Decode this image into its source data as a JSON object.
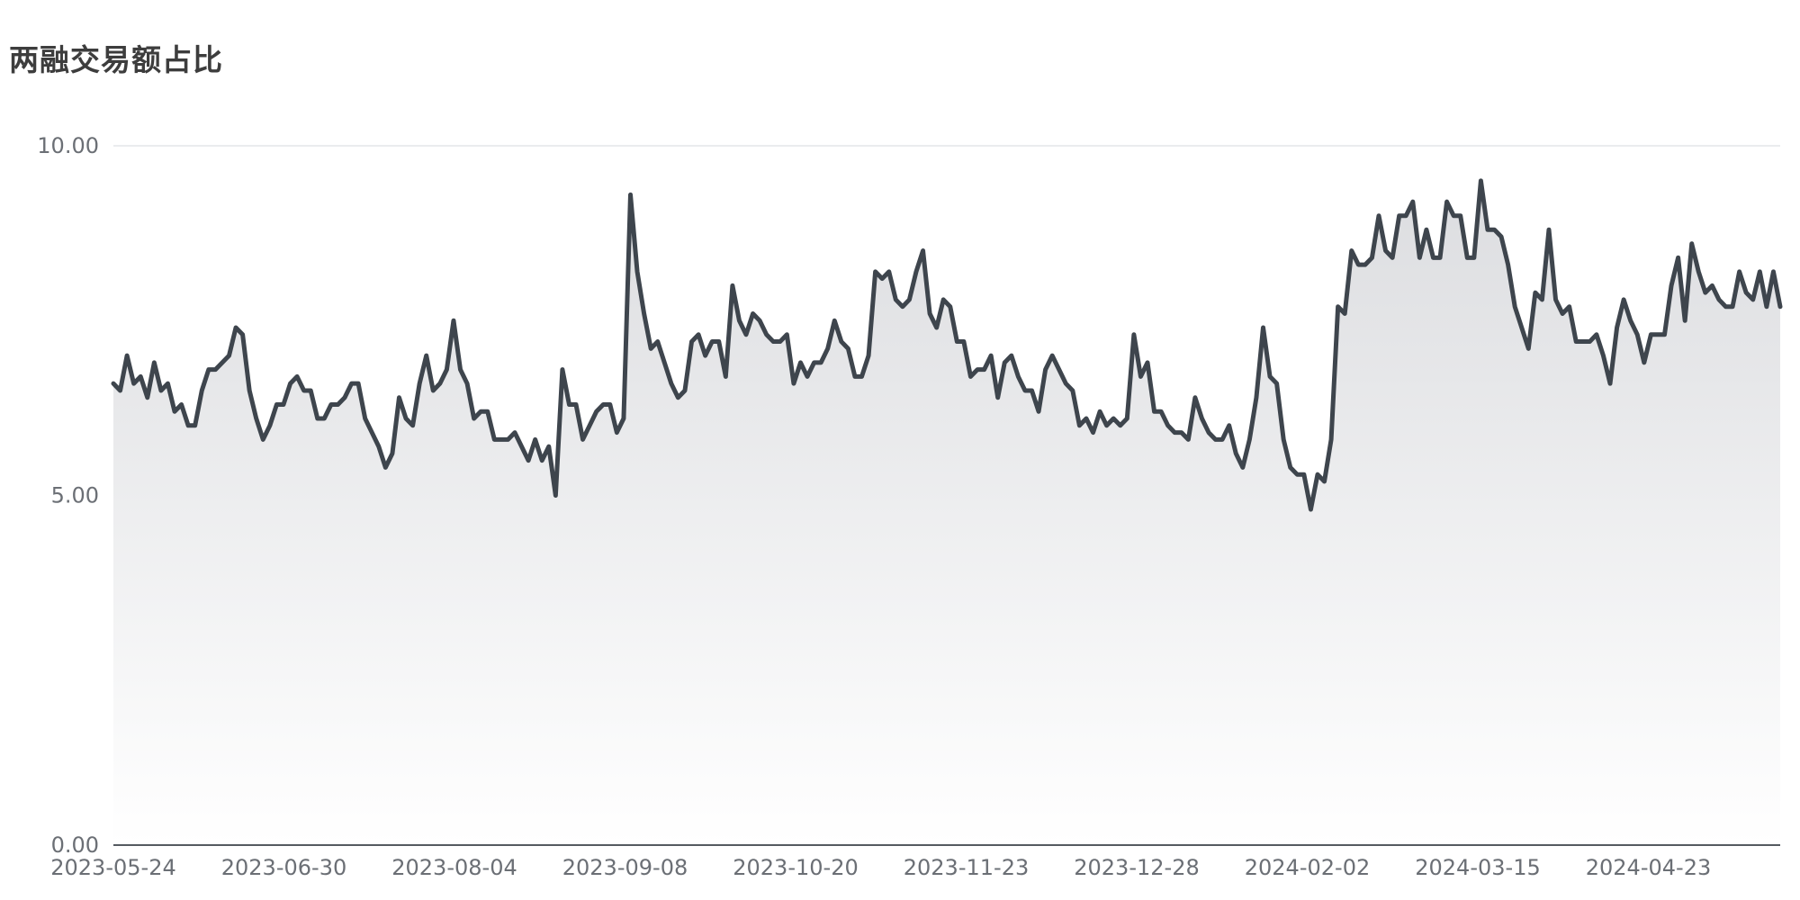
{
  "chart_data": {
    "type": "area",
    "title": "两融交易额占比",
    "xlabel": "",
    "ylabel": "",
    "ylim": [
      0,
      10
    ],
    "yticks": [
      "0.00",
      "5.00",
      "10.00"
    ],
    "x_ticks": [
      "2023-05-24",
      "2023-06-30",
      "2023-08-04",
      "2023-09-08",
      "2023-10-20",
      "2023-11-23",
      "2023-12-28",
      "2024-02-02",
      "2024-03-15",
      "2024-04-23"
    ],
    "grid": "horizontal",
    "legend": "none",
    "colors": {
      "line": "#3e454d",
      "fill_top": "#dcdde0",
      "fill_bottom": "#ffffff",
      "grid": "#e3e5e8",
      "axis": "#555a60"
    },
    "series": [
      {
        "values": [
          6.6,
          6.5,
          7.0,
          6.6,
          6.7,
          6.4,
          6.9,
          6.5,
          6.6,
          6.2,
          6.3,
          6.0,
          6.0,
          6.5,
          6.8,
          6.8,
          6.9,
          7.0,
          7.4,
          7.3,
          6.5,
          6.1,
          5.8,
          6.0,
          6.3,
          6.3,
          6.6,
          6.7,
          6.5,
          6.5,
          6.1,
          6.1,
          6.3,
          6.3,
          6.4,
          6.6,
          6.6,
          6.1,
          5.9,
          5.7,
          5.4,
          5.6,
          6.4,
          6.1,
          6.0,
          6.6,
          7.0,
          6.5,
          6.6,
          6.8,
          7.5,
          6.8,
          6.6,
          6.1,
          6.2,
          6.2,
          5.8,
          5.8,
          5.8,
          5.9,
          5.7,
          5.5,
          5.8,
          5.5,
          5.7,
          5.0,
          6.8,
          6.3,
          6.3,
          5.8,
          6.0,
          6.2,
          6.3,
          6.3,
          5.9,
          6.1,
          9.3,
          8.2,
          7.6,
          7.1,
          7.2,
          6.9,
          6.6,
          6.4,
          6.5,
          7.2,
          7.3,
          7.0,
          7.2,
          7.2,
          6.7,
          8.0,
          7.5,
          7.3,
          7.6,
          7.5,
          7.3,
          7.2,
          7.2,
          7.3,
          6.6,
          6.9,
          6.7,
          6.9,
          6.9,
          7.1,
          7.5,
          7.2,
          7.1,
          6.7,
          6.7,
          7.0,
          8.2,
          8.1,
          8.2,
          7.8,
          7.7,
          7.8,
          8.2,
          8.5,
          7.6,
          7.4,
          7.8,
          7.7,
          7.2,
          7.2,
          6.7,
          6.8,
          6.8,
          7.0,
          6.4,
          6.9,
          7.0,
          6.7,
          6.5,
          6.5,
          6.2,
          6.8,
          7.0,
          6.8,
          6.6,
          6.5,
          6.0,
          6.1,
          5.9,
          6.2,
          6.0,
          6.1,
          6.0,
          6.1,
          7.3,
          6.7,
          6.9,
          6.2,
          6.2,
          6.0,
          5.9,
          5.9,
          5.8,
          6.4,
          6.1,
          5.9,
          5.8,
          5.8,
          6.0,
          5.6,
          5.4,
          5.8,
          6.4,
          7.4,
          6.7,
          6.6,
          5.8,
          5.4,
          5.3,
          5.3,
          4.8,
          5.3,
          5.2,
          5.8,
          7.7,
          7.6,
          8.5,
          8.3,
          8.3,
          8.4,
          9.0,
          8.5,
          8.4,
          9.0,
          9.0,
          9.2,
          8.4,
          8.8,
          8.4,
          8.4,
          9.2,
          9.0,
          9.0,
          8.4,
          8.4,
          9.5,
          8.8,
          8.8,
          8.7,
          8.3,
          7.7,
          7.4,
          7.1,
          7.9,
          7.8,
          8.8,
          7.8,
          7.6,
          7.7,
          7.2,
          7.2,
          7.2,
          7.3,
          7.0,
          6.6,
          7.4,
          7.8,
          7.5,
          7.3,
          6.9,
          7.3,
          7.3,
          7.3,
          8.0,
          8.4,
          7.5,
          8.6,
          8.2,
          7.9,
          8.0,
          7.8,
          7.7,
          7.7,
          8.2,
          7.9,
          7.8,
          8.2,
          7.7,
          8.2,
          7.7
        ]
      }
    ]
  }
}
